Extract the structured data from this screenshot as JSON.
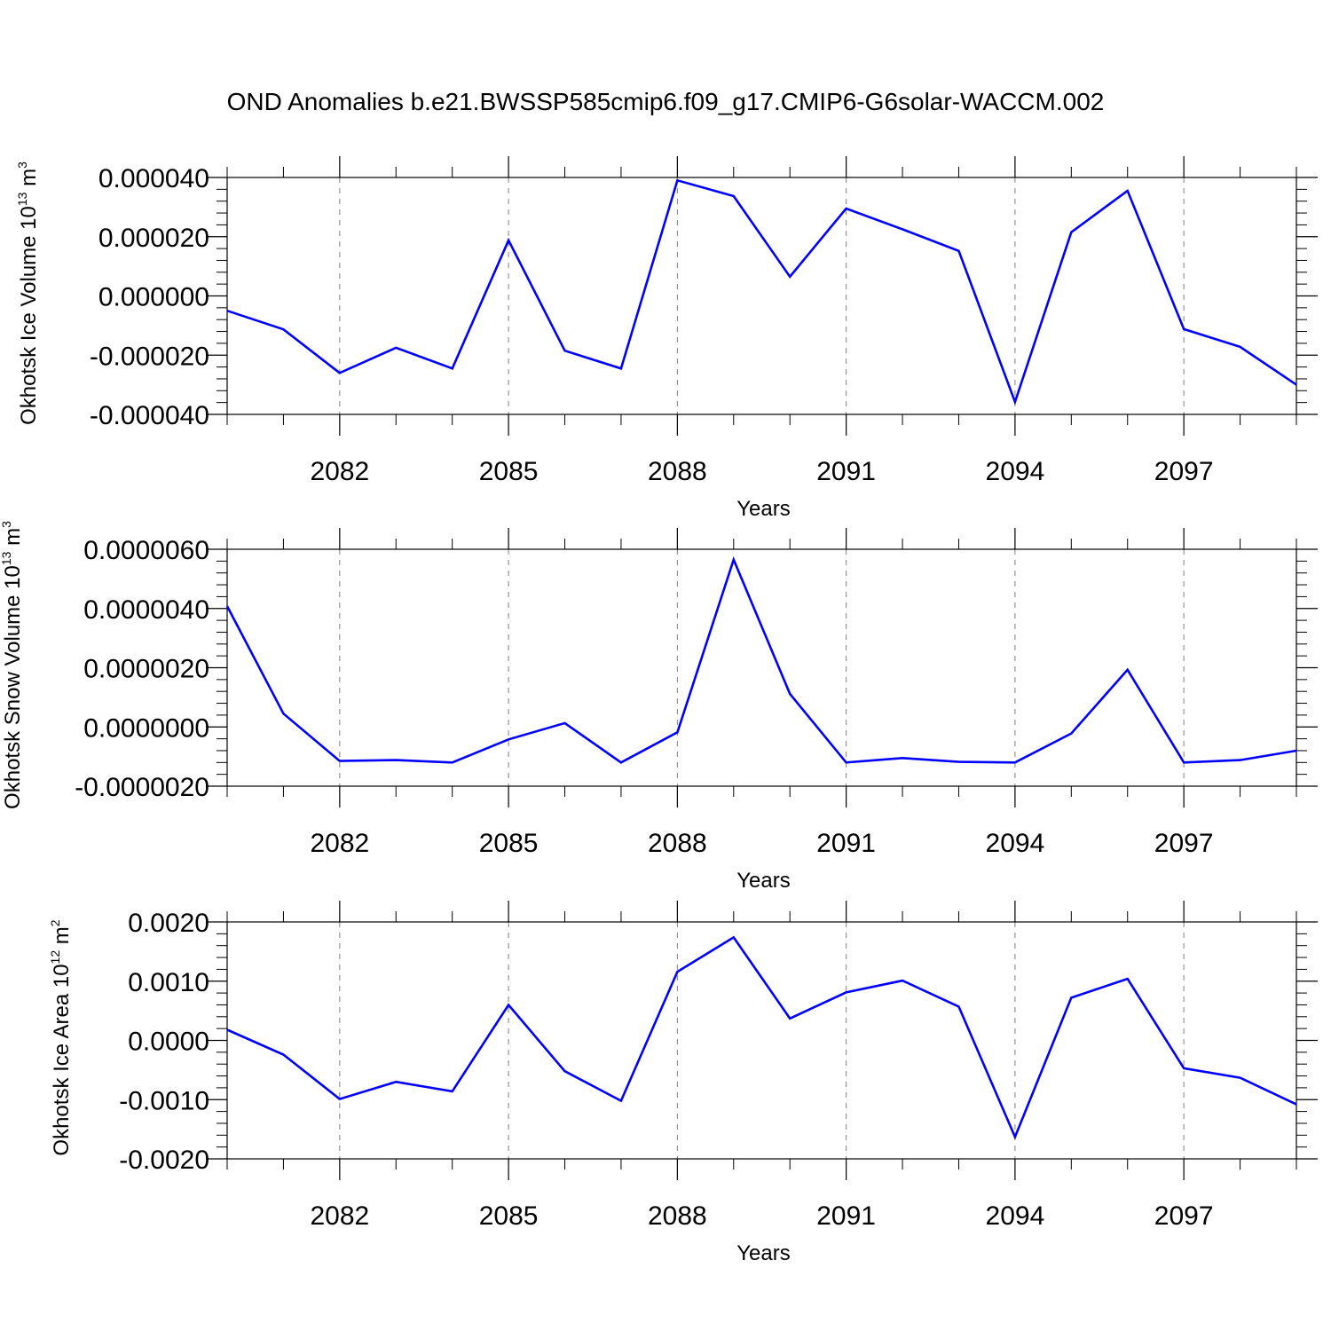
{
  "title": "OND Anomalies b.e21.BWSSP585cmip6.f09_g17.CMIP6-G6solar-WACCM.002",
  "colors": {
    "line": "#0000ff",
    "axis": "#000000",
    "grid": "#808080"
  },
  "chart_data": [
    {
      "type": "line",
      "ylabel": {
        "text": "Okhotsk Ice Volume 10",
        "exp": "13",
        "unit": "m",
        "unit_exp": "3"
      },
      "xlabel": "Years",
      "xlim": [
        2080,
        2099
      ],
      "ylim": [
        -4e-05,
        4e-05
      ],
      "x_ticks": [
        2082,
        2085,
        2088,
        2091,
        2094,
        2097
      ],
      "x_tick_labels": [
        "2082",
        "2085",
        "2088",
        "2091",
        "2094",
        "2097"
      ],
      "y_ticks": [
        4e-05,
        2e-05,
        0.0,
        -2e-05,
        -4e-05
      ],
      "y_tick_labels": [
        "0.000040",
        "0.000020",
        "0.000000",
        "-0.000020",
        "-0.000040"
      ],
      "grid": "vertical dashed at x ticks",
      "series": [
        {
          "x": [
            2080,
            2081,
            2082,
            2083,
            2084,
            2085,
            2086,
            2087,
            2088,
            2089,
            2090,
            2091,
            2092,
            2093,
            2094,
            2095,
            2096,
            2097,
            2098,
            2099
          ],
          "values": [
            -5e-06,
            -1.13e-05,
            -2.6e-05,
            -1.75e-05,
            -2.45e-05,
            1.88e-05,
            -1.85e-05,
            -2.45e-05,
            3.9e-05,
            3.37e-05,
            6.5e-06,
            2.95e-05,
            2.25e-05,
            1.52e-05,
            -3.58e-05,
            2.15e-05,
            3.55e-05,
            -1.12e-05,
            -1.72e-05,
            -3e-05
          ]
        }
      ]
    },
    {
      "type": "line",
      "ylabel": {
        "text": "Okhotsk Snow Volume 10",
        "exp": "13",
        "unit": "m",
        "unit_exp": "3"
      },
      "xlabel": "Years",
      "xlim": [
        2080,
        2099
      ],
      "ylim": [
        -2e-06,
        6e-06
      ],
      "x_ticks": [
        2082,
        2085,
        2088,
        2091,
        2094,
        2097
      ],
      "x_tick_labels": [
        "2082",
        "2085",
        "2088",
        "2091",
        "2094",
        "2097"
      ],
      "y_ticks": [
        6e-06,
        4e-06,
        2e-06,
        0.0,
        -2e-06
      ],
      "y_tick_labels": [
        "0.0000060",
        "0.0000040",
        "0.0000020",
        "0.0000000",
        "-0.0000020"
      ],
      "grid": "vertical dashed at x ticks",
      "series": [
        {
          "x": [
            2080,
            2081,
            2082,
            2083,
            2084,
            2085,
            2086,
            2087,
            2088,
            2089,
            2090,
            2091,
            2092,
            2093,
            2094,
            2095,
            2096,
            2097,
            2098,
            2099
          ],
          "values": [
            4.08e-06,
            4.5e-07,
            -1.15e-06,
            -1.12e-06,
            -1.2e-06,
            -4.2e-07,
            1.3e-07,
            -1.2e-06,
            -1.8e-07,
            5.65e-06,
            1.12e-06,
            -1.2e-06,
            -1.05e-06,
            -1.18e-06,
            -1.2e-06,
            -2.2e-07,
            1.93e-06,
            -1.2e-06,
            -1.12e-06,
            -8e-07
          ]
        }
      ]
    },
    {
      "type": "line",
      "ylabel": {
        "text": "Okhotsk Ice Area 10",
        "exp": "12",
        "unit": "m",
        "unit_exp": "2"
      },
      "xlabel": "Years",
      "xlim": [
        2080,
        2099
      ],
      "ylim": [
        -0.002,
        0.002
      ],
      "x_ticks": [
        2082,
        2085,
        2088,
        2091,
        2094,
        2097
      ],
      "x_tick_labels": [
        "2082",
        "2085",
        "2088",
        "2091",
        "2094",
        "2097"
      ],
      "y_ticks": [
        0.002,
        0.001,
        0.0,
        -0.001,
        -0.002
      ],
      "y_tick_labels": [
        "0.0020",
        "0.0010",
        "0.0000",
        "-0.0010",
        "-0.0020"
      ],
      "grid": "vertical dashed at x ticks",
      "series": [
        {
          "x": [
            2080,
            2081,
            2082,
            2083,
            2084,
            2085,
            2086,
            2087,
            2088,
            2089,
            2090,
            2091,
            2092,
            2093,
            2094,
            2095,
            2096,
            2097,
            2098,
            2099
          ],
          "values": [
            0.00018,
            -0.00024,
            -0.00099,
            -0.0007,
            -0.00086,
            0.0006,
            -0.00052,
            -0.00102,
            0.00116,
            0.00174,
            0.00037,
            0.00081,
            0.00101,
            0.00057,
            -0.00163,
            0.00072,
            0.00104,
            -0.00047,
            -0.00063,
            -0.00108
          ]
        }
      ]
    }
  ]
}
